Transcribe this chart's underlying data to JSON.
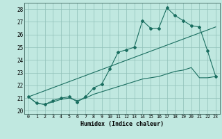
{
  "xlabel": "Humidex (Indice chaleur)",
  "background_color": "#c0e8e0",
  "grid_color": "#90c0b8",
  "line_color": "#1a6e60",
  "xlim": [
    -0.5,
    23.5
  ],
  "ylim": [
    19.75,
    28.5
  ],
  "xticks": [
    0,
    1,
    2,
    3,
    4,
    5,
    6,
    7,
    8,
    9,
    10,
    11,
    12,
    13,
    14,
    15,
    16,
    17,
    18,
    19,
    20,
    21,
    22,
    23
  ],
  "yticks": [
    20,
    21,
    22,
    23,
    24,
    25,
    26,
    27,
    28
  ],
  "line1_x": [
    0,
    1,
    2,
    3,
    4,
    5,
    6,
    7,
    8,
    9,
    10,
    11,
    12,
    13,
    14,
    15,
    16,
    17,
    18,
    19,
    20,
    21,
    22,
    23
  ],
  "line1_y": [
    21.1,
    20.6,
    20.5,
    20.8,
    21.0,
    21.1,
    20.7,
    21.1,
    21.8,
    22.1,
    23.3,
    24.6,
    24.8,
    25.0,
    27.1,
    26.5,
    26.5,
    28.1,
    27.5,
    27.1,
    26.7,
    26.6,
    24.7,
    22.7
  ],
  "line2_x": [
    0,
    23
  ],
  "line2_y": [
    21.1,
    26.6
  ],
  "line3_x": [
    0,
    1,
    2,
    3,
    4,
    5,
    6,
    7,
    8,
    9,
    10,
    11,
    12,
    13,
    14,
    15,
    16,
    17,
    18,
    19,
    20,
    21,
    22,
    23
  ],
  "line3_y": [
    21.1,
    20.6,
    20.5,
    20.7,
    20.9,
    21.0,
    20.8,
    21.0,
    21.3,
    21.5,
    21.7,
    21.9,
    22.1,
    22.3,
    22.5,
    22.6,
    22.7,
    22.9,
    23.1,
    23.2,
    23.4,
    22.6,
    22.6,
    22.7
  ]
}
